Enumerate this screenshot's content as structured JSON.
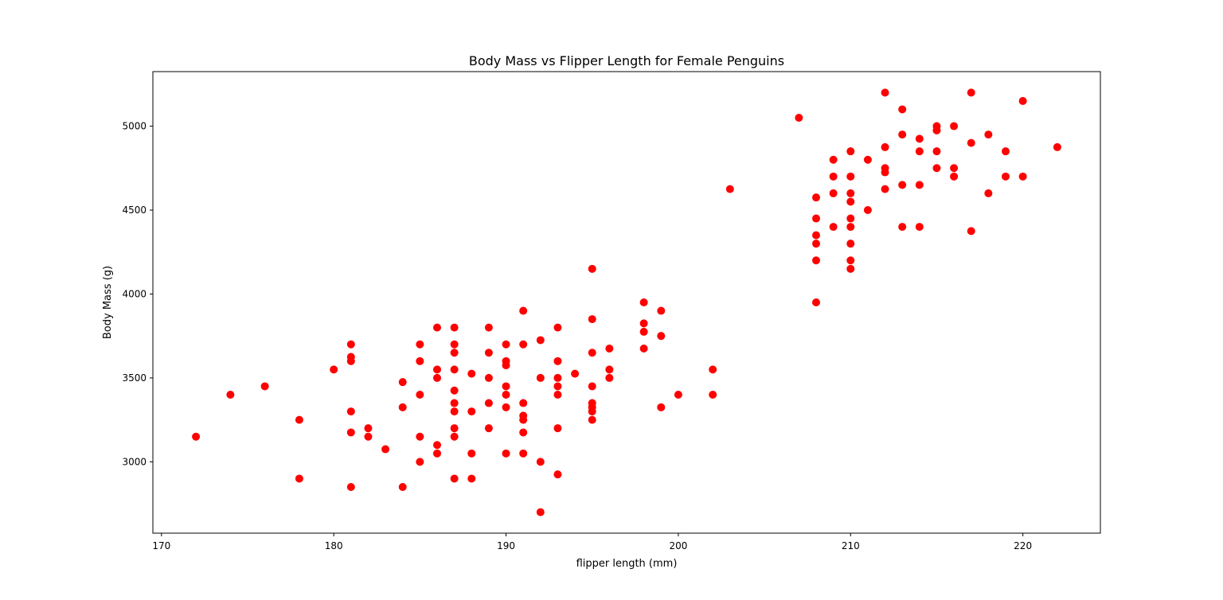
{
  "chart_data": {
    "type": "scatter",
    "title": "Body Mass vs Flipper Length for Female Penguins",
    "xlabel": "flipper length (mm)",
    "ylabel": "Body Mass (g)",
    "xlim": [
      169.5,
      224.5
    ],
    "ylim": [
      2575,
      5325
    ],
    "xticks": [
      170,
      180,
      190,
      200,
      210,
      220
    ],
    "yticks": [
      3000,
      3500,
      4000,
      4500,
      5000
    ],
    "grid": false,
    "marker_color": "#ff0000",
    "series": [
      {
        "points": [
          [
            172,
            3150
          ],
          [
            174,
            3400
          ],
          [
            176,
            3450
          ],
          [
            178,
            3250
          ],
          [
            178,
            2900
          ],
          [
            180,
            3550
          ],
          [
            181,
            3700
          ],
          [
            181,
            3625
          ],
          [
            181,
            3600
          ],
          [
            181,
            3300
          ],
          [
            181,
            3175
          ],
          [
            181,
            2850
          ],
          [
            182,
            3200
          ],
          [
            182,
            3150
          ],
          [
            183,
            3075
          ],
          [
            184,
            3475
          ],
          [
            184,
            3325
          ],
          [
            184,
            2850
          ],
          [
            185,
            3700
          ],
          [
            185,
            3600
          ],
          [
            185,
            3400
          ],
          [
            185,
            3150
          ],
          [
            185,
            3000
          ],
          [
            186,
            3800
          ],
          [
            186,
            3550
          ],
          [
            186,
            3500
          ],
          [
            186,
            3100
          ],
          [
            186,
            3050
          ],
          [
            187,
            3800
          ],
          [
            187,
            3700
          ],
          [
            187,
            3650
          ],
          [
            187,
            3550
          ],
          [
            187,
            3425
          ],
          [
            187,
            3350
          ],
          [
            187,
            3300
          ],
          [
            187,
            3200
          ],
          [
            187,
            3150
          ],
          [
            187,
            2900
          ],
          [
            188,
            3525
          ],
          [
            188,
            3300
          ],
          [
            188,
            3050
          ],
          [
            188,
            2900
          ],
          [
            189,
            3800
          ],
          [
            189,
            3650
          ],
          [
            189,
            3500
          ],
          [
            189,
            3350
          ],
          [
            189,
            3200
          ],
          [
            190,
            3700
          ],
          [
            190,
            3600
          ],
          [
            190,
            3575
          ],
          [
            190,
            3450
          ],
          [
            190,
            3400
          ],
          [
            190,
            3325
          ],
          [
            190,
            3050
          ],
          [
            191,
            3900
          ],
          [
            191,
            3700
          ],
          [
            191,
            3350
          ],
          [
            191,
            3275
          ],
          [
            191,
            3250
          ],
          [
            191,
            3175
          ],
          [
            191,
            3050
          ],
          [
            192,
            3725
          ],
          [
            192,
            3500
          ],
          [
            192,
            3000
          ],
          [
            192,
            2700
          ],
          [
            193,
            3800
          ],
          [
            193,
            3600
          ],
          [
            193,
            3500
          ],
          [
            193,
            3450
          ],
          [
            193,
            3400
          ],
          [
            193,
            3200
          ],
          [
            193,
            2925
          ],
          [
            194,
            3525
          ],
          [
            195,
            4150
          ],
          [
            195,
            3850
          ],
          [
            195,
            3650
          ],
          [
            195,
            3450
          ],
          [
            195,
            3350
          ],
          [
            195,
            3325
          ],
          [
            195,
            3300
          ],
          [
            195,
            3250
          ],
          [
            196,
            3675
          ],
          [
            196,
            3550
          ],
          [
            196,
            3500
          ],
          [
            198,
            3950
          ],
          [
            198,
            3825
          ],
          [
            198,
            3775
          ],
          [
            198,
            3675
          ],
          [
            199,
            3900
          ],
          [
            199,
            3750
          ],
          [
            199,
            3325
          ],
          [
            200,
            3400
          ],
          [
            202,
            3550
          ],
          [
            202,
            3400
          ],
          [
            203,
            4625
          ],
          [
            207,
            5050
          ],
          [
            208,
            4575
          ],
          [
            208,
            4450
          ],
          [
            208,
            4350
          ],
          [
            208,
            4300
          ],
          [
            208,
            4200
          ],
          [
            208,
            3950
          ],
          [
            209,
            4800
          ],
          [
            209,
            4700
          ],
          [
            209,
            4600
          ],
          [
            209,
            4400
          ],
          [
            210,
            4850
          ],
          [
            210,
            4700
          ],
          [
            210,
            4600
          ],
          [
            210,
            4550
          ],
          [
            210,
            4450
          ],
          [
            210,
            4400
          ],
          [
            210,
            4300
          ],
          [
            210,
            4200
          ],
          [
            210,
            4150
          ],
          [
            211,
            4800
          ],
          [
            211,
            4500
          ],
          [
            212,
            5200
          ],
          [
            212,
            4875
          ],
          [
            212,
            4750
          ],
          [
            212,
            4725
          ],
          [
            212,
            4625
          ],
          [
            213,
            5100
          ],
          [
            213,
            4950
          ],
          [
            213,
            4650
          ],
          [
            213,
            4400
          ],
          [
            214,
            4925
          ],
          [
            214,
            4850
          ],
          [
            214,
            4650
          ],
          [
            214,
            4400
          ],
          [
            215,
            5000
          ],
          [
            215,
            4975
          ],
          [
            215,
            4850
          ],
          [
            215,
            4750
          ],
          [
            216,
            5000
          ],
          [
            216,
            4750
          ],
          [
            216,
            4700
          ],
          [
            217,
            5200
          ],
          [
            217,
            4900
          ],
          [
            217,
            4375
          ],
          [
            218,
            4950
          ],
          [
            218,
            4600
          ],
          [
            219,
            4850
          ],
          [
            219,
            4700
          ],
          [
            220,
            5150
          ],
          [
            220,
            4700
          ],
          [
            222,
            4875
          ]
        ]
      }
    ]
  }
}
